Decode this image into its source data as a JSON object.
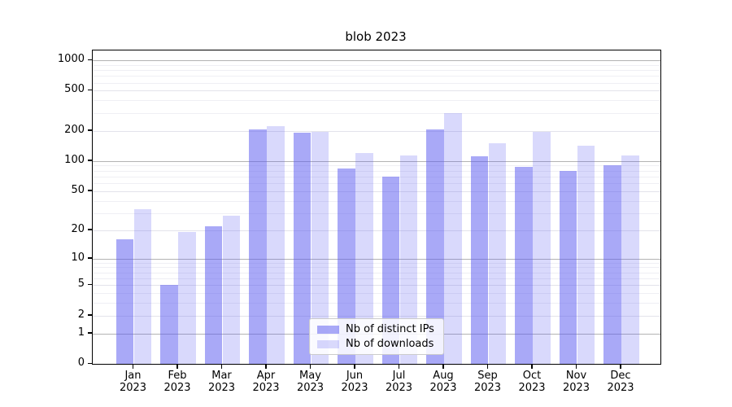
{
  "title": "blob 2023",
  "chart_data": {
    "type": "bar",
    "title": "blob 2023",
    "xlabel": "",
    "ylabel": "",
    "yscale": "log1p",
    "ylim": [
      0,
      1250
    ],
    "grid": true,
    "legend_position": "inside-bottom-center",
    "y_ticks": [
      0,
      1,
      2,
      5,
      10,
      20,
      50,
      100,
      200,
      500,
      1000
    ],
    "y_subgrid_ticks": [
      2,
      5,
      20,
      50,
      200,
      500
    ],
    "y_minor_ticks": [
      3,
      4,
      6,
      7,
      8,
      9,
      30,
      40,
      60,
      70,
      80,
      90,
      300,
      400,
      600,
      700,
      800,
      900
    ],
    "categories": [
      "Jan 2023",
      "Feb 2023",
      "Mar 2023",
      "Apr 2023",
      "May 2023",
      "Jun 2023",
      "Jul 2023",
      "Aug 2023",
      "Sep 2023",
      "Oct 2023",
      "Nov 2023",
      "Dec 2023"
    ],
    "series": [
      {
        "name": "Nb of distinct IPs",
        "color": "rgba(90,90,240,0.52)",
        "values": [
          16,
          5,
          22,
          205,
          190,
          85,
          70,
          206,
          112,
          87,
          80,
          91
        ]
      },
      {
        "name": "Nb of downloads",
        "color": "rgba(90,90,240,0.23)",
        "values": [
          33,
          19,
          28,
          222,
          196,
          121,
          113,
          300,
          151,
          196,
          142,
          114
        ]
      }
    ],
    "colors": {
      "grid_decade": "#b3b3b3",
      "grid_sub": "#e3e3eb",
      "grid_minor": "#efeff4",
      "axis": "#000000",
      "background": "#ffffff"
    }
  }
}
